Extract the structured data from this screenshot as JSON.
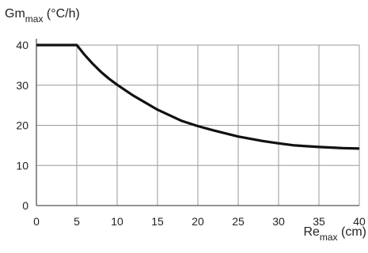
{
  "chart_data": {
    "type": "line",
    "xlabel": {
      "base": "Re",
      "sub": "max",
      "unit": " (cm)"
    },
    "ylabel": {
      "base": "Gm",
      "sub": "max",
      "unit": " (°C/h)"
    },
    "x_ticks": [
      0,
      5,
      10,
      15,
      20,
      25,
      30,
      35,
      40
    ],
    "y_ticks": [
      0,
      10,
      20,
      30,
      40
    ],
    "xlim": [
      0,
      40
    ],
    "ylim": [
      0,
      40
    ],
    "grid": true,
    "series": [
      {
        "x": [
          0,
          5,
          6,
          7,
          8,
          9,
          10,
          12,
          15,
          18,
          20,
          22,
          25,
          28,
          30,
          32,
          35,
          38,
          40
        ],
        "y": [
          40,
          40,
          37.5,
          35.3,
          33.3,
          31.6,
          30.1,
          27.4,
          23.9,
          21.1,
          19.8,
          18.7,
          17.2,
          16.1,
          15.5,
          15.0,
          14.6,
          14.3,
          14.2
        ],
        "color": "#111111"
      }
    ]
  }
}
